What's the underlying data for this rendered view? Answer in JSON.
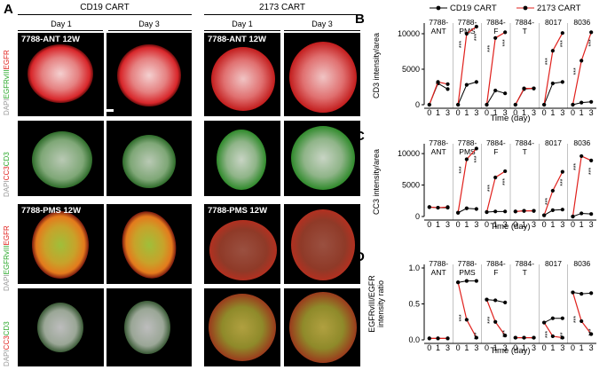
{
  "panel_a": {
    "letter": "A",
    "group_left_title": "CD19 CART",
    "group_right_title": "2173 CART",
    "day_headers": [
      "Day 1",
      "Day 3",
      "Day 1",
      "Day 3"
    ],
    "sample_top_label": "7788-ANT 12W",
    "sample_bottom_label": "7788-PMS 12W",
    "row_labels": [
      {
        "dapi": "DAPI",
        "green": "EGFRvIII",
        "red": "EGFR"
      },
      {
        "dapi": "DAPI",
        "red": "CC3",
        "green": "CD3"
      },
      {
        "dapi": "DAPI",
        "green": "EGFRvIII",
        "red": "EGFR"
      },
      {
        "dapi": "DAPI",
        "red": "CC3",
        "green": "CD3"
      }
    ]
  },
  "legend": {
    "cd19": "CD19 CART",
    "cart2173": "2173 CART"
  },
  "colors": {
    "cd19": "#000000",
    "cart2173": "#e0201c"
  },
  "xtick_labels": [
    "0",
    "1",
    "3"
  ],
  "chart_data": [
    {
      "letter": "B",
      "type": "line",
      "ylabel": "CD3 intensity/area",
      "xlabel": "Time (day)",
      "ylim": [
        0,
        11000
      ],
      "yticks": [
        0,
        5000,
        10000
      ],
      "ytick_labels": [
        "0",
        "5000",
        "10000"
      ],
      "samples": [
        "7788-\nANT",
        "7788-\nPMS",
        "7884-\nF",
        "7884-\nT",
        "8017",
        "8036"
      ],
      "x": [
        0,
        1,
        3
      ],
      "series": [
        {
          "name": "CD19 CART",
          "by_sample": [
            [
              0,
              3000,
              2200
            ],
            [
              0,
              2800,
              3200
            ],
            [
              0,
              2000,
              1600
            ],
            [
              0,
              2200,
              2300
            ],
            [
              0,
              3000,
              3200
            ],
            [
              0,
              300,
              400
            ]
          ]
        },
        {
          "name": "2173 CART",
          "by_sample": [
            [
              0,
              3200,
              2900
            ],
            [
              0,
              10000,
              11000
            ],
            [
              0,
              9400,
              10200
            ],
            [
              0,
              2300,
              2300
            ],
            [
              0,
              7600,
              10100
            ],
            [
              0,
              6200,
              10200
            ]
          ]
        }
      ],
      "annotations": [
        "***",
        "***",
        "***",
        "***",
        "***",
        "***",
        "***",
        "***"
      ]
    },
    {
      "letter": "C",
      "type": "line",
      "ylabel": "CC3 intensity/area",
      "xlabel": "Time (day)",
      "ylim": [
        0,
        11000
      ],
      "yticks": [
        0,
        5000,
        10000
      ],
      "ytick_labels": [
        "0",
        "5000",
        "10000"
      ],
      "samples": [
        "7788-\nANT",
        "7788-\nPMS",
        "7884-\nF",
        "7884-\nT",
        "8017",
        "8036"
      ],
      "x": [
        0,
        1,
        3
      ],
      "series": [
        {
          "name": "CD19 CART",
          "by_sample": [
            [
              1500,
              1400,
              1400
            ],
            [
              600,
              1300,
              1200
            ],
            [
              700,
              800,
              800
            ],
            [
              800,
              900,
              900
            ],
            [
              200,
              1000,
              1100
            ],
            [
              0,
              500,
              400
            ]
          ]
        },
        {
          "name": "2173 CART",
          "by_sample": [
            [
              1500,
              1400,
              1500
            ],
            [
              600,
              9100,
              10800
            ],
            [
              700,
              6200,
              7200
            ],
            [
              800,
              900,
              900
            ],
            [
              200,
              4100,
              7100
            ],
            [
              0,
              9600,
              8900
            ]
          ]
        }
      ],
      "annotations": [
        "***",
        "***",
        "***",
        "***",
        "***",
        "***",
        "***",
        "***"
      ]
    },
    {
      "letter": "D",
      "type": "line",
      "ylabel": "EGFRvIII/EGFR\nintensity ratio",
      "xlabel": "Time (day)",
      "ylim": [
        0,
        1.0
      ],
      "yticks": [
        0,
        0.5,
        1.0
      ],
      "ytick_labels": [
        "0.0",
        "0.5",
        "1.0"
      ],
      "samples": [
        "7788-\nANT",
        "7788-\nPMS",
        "7884-\nF",
        "7884-\nT",
        "8017",
        "8036"
      ],
      "x": [
        0,
        1,
        3
      ],
      "series": [
        {
          "name": "CD19 CART",
          "by_sample": [
            [
              0.02,
              0.02,
              0.02
            ],
            [
              0.8,
              0.82,
              0.82
            ],
            [
              0.56,
              0.55,
              0.52
            ],
            [
              0.03,
              0.03,
              0.03
            ],
            [
              0.24,
              0.3,
              0.3
            ],
            [
              0.66,
              0.64,
              0.65
            ]
          ]
        },
        {
          "name": "2173 CART",
          "by_sample": [
            [
              0.02,
              0.02,
              0.02
            ],
            [
              0.8,
              0.28,
              0.03
            ],
            [
              0.56,
              0.25,
              0.06
            ],
            [
              0.03,
              0.03,
              0.03
            ],
            [
              0.24,
              0.05,
              0.03
            ],
            [
              0.66,
              0.26,
              0.08
            ]
          ]
        }
      ],
      "annotations": [
        "***",
        "***",
        "***",
        "***",
        "***",
        "***",
        "***",
        "***"
      ]
    }
  ]
}
